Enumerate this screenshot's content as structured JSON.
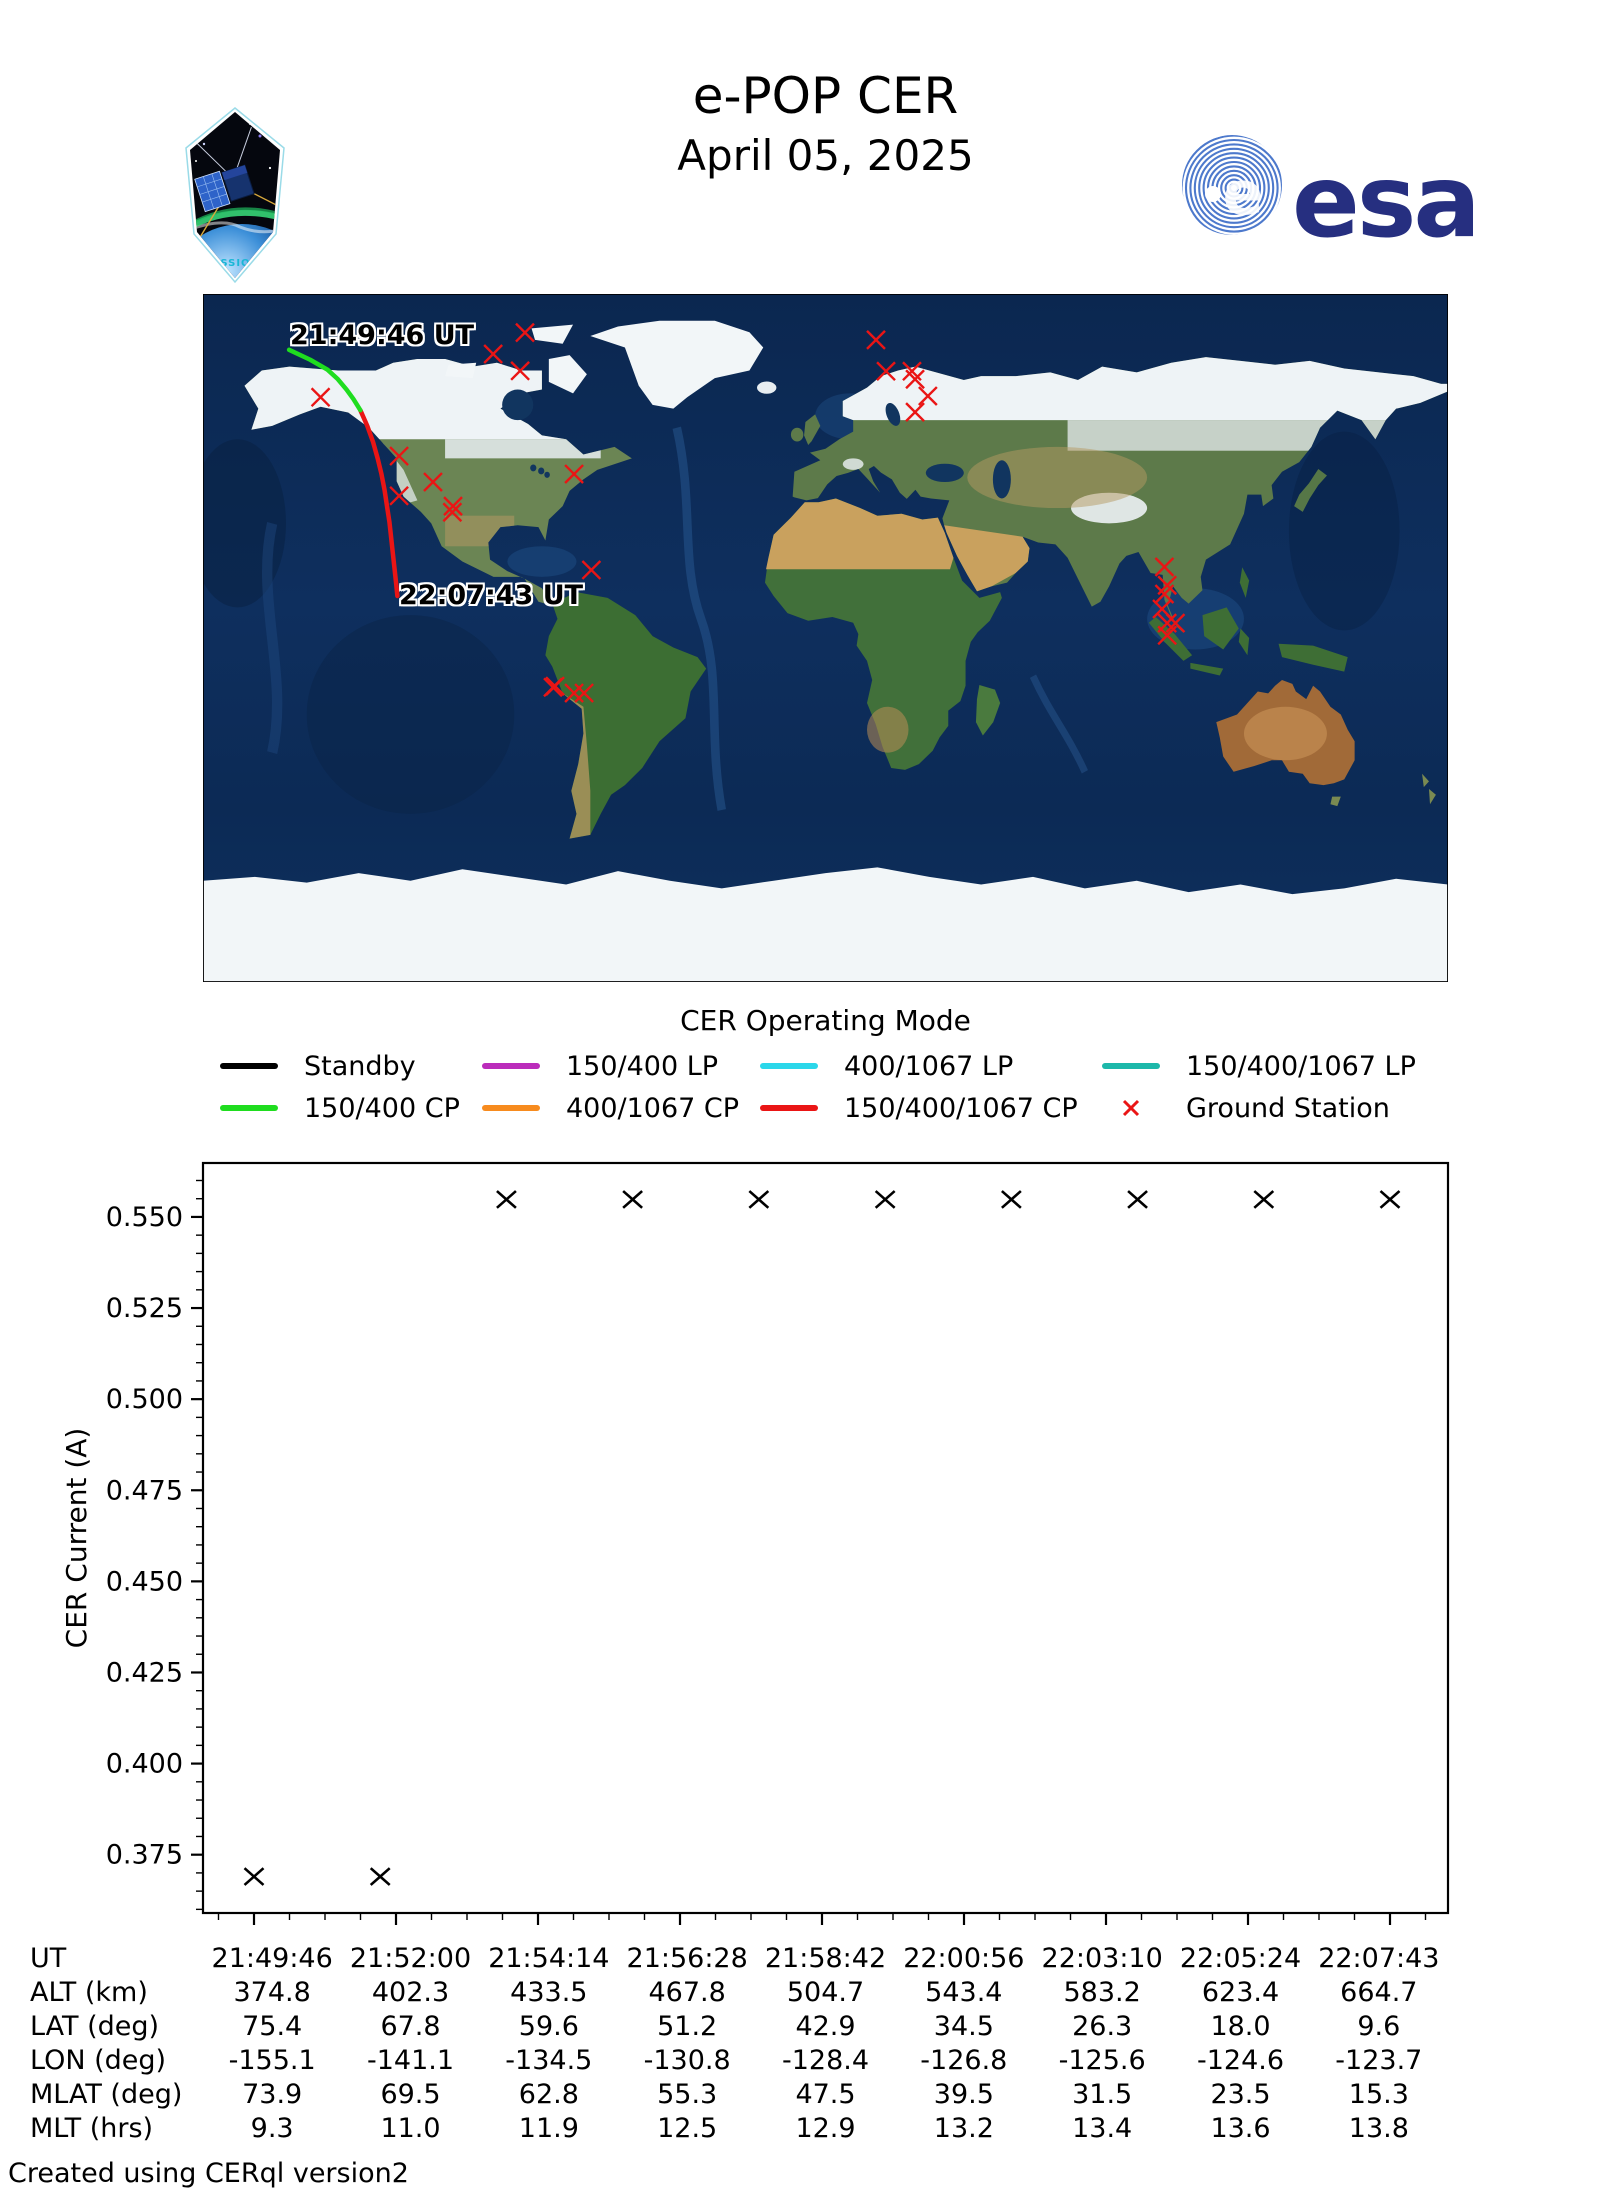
{
  "header": {
    "title": "e-POP CER",
    "date": "April 05, 2025",
    "esa_wordmark": "esa",
    "patch_text": "CASSIOPE"
  },
  "map": {
    "start_label": "21:49:46 UT",
    "end_label": "22:07:43 UT",
    "track_green": [
      [
        -155.1,
        75.4
      ],
      [
        -149.0,
        72.8
      ],
      [
        -144.0,
        70.2
      ],
      [
        -141.1,
        67.8
      ],
      [
        -138.5,
        65.0
      ],
      [
        -136.5,
        62.5
      ],
      [
        -134.5,
        59.6
      ]
    ],
    "track_red": [
      [
        -134.5,
        59.6
      ],
      [
        -132.5,
        55.5
      ],
      [
        -130.8,
        51.2
      ],
      [
        -129.5,
        47.0
      ],
      [
        -128.4,
        42.9
      ],
      [
        -127.5,
        38.7
      ],
      [
        -126.8,
        34.5
      ],
      [
        -126.1,
        30.4
      ],
      [
        -125.6,
        26.3
      ],
      [
        -125.1,
        22.1
      ],
      [
        -124.6,
        18.0
      ],
      [
        -124.1,
        13.8
      ],
      [
        -123.8,
        11.0
      ]
    ],
    "ground_stations": [
      [
        -86.9,
        79.9
      ],
      [
        -96.1,
        74.3
      ],
      [
        -88.3,
        69.9
      ],
      [
        -146.0,
        63.0
      ],
      [
        -123.3,
        47.6
      ],
      [
        -113.5,
        40.8
      ],
      [
        -123.3,
        37.2
      ],
      [
        -107.7,
        34.5
      ],
      [
        -107.9,
        32.9
      ],
      [
        -72.7,
        42.9
      ],
      [
        -67.7,
        17.8
      ],
      [
        -78.2,
        -12.6
      ],
      [
        -78.8,
        -12.9
      ],
      [
        -72.7,
        -14.4
      ],
      [
        -69.8,
        -14.4
      ],
      [
        14.6,
        78.0
      ],
      [
        17.5,
        69.8
      ],
      [
        25.0,
        69.8
      ],
      [
        25.9,
        67.7
      ],
      [
        29.6,
        63.3
      ],
      [
        25.9,
        59.1
      ],
      [
        98.0,
        18.6
      ],
      [
        98.8,
        13.8
      ],
      [
        98.0,
        11.5
      ],
      [
        97.3,
        7.6
      ],
      [
        98.8,
        3.9
      ],
      [
        101.2,
        3.9
      ],
      [
        98.8,
        0.7
      ]
    ],
    "colors": {
      "green_track": "#1fdd1f",
      "red_track": "#ea1515",
      "station": "#ea1515"
    }
  },
  "legend": {
    "title": "CER Operating Mode",
    "items": [
      {
        "label": "Standby",
        "color": "#000000",
        "type": "line"
      },
      {
        "label": "150/400 LP",
        "color": "#bb2cbb",
        "type": "line"
      },
      {
        "label": "400/1067 LP",
        "color": "#2bd7ea",
        "type": "line"
      },
      {
        "label": "150/400/1067 LP",
        "color": "#1db8aa",
        "type": "line"
      },
      {
        "label": "150/400 CP",
        "color": "#1fdd1f",
        "type": "line"
      },
      {
        "label": "400/1067 CP",
        "color": "#f78b1e",
        "type": "line"
      },
      {
        "label": "150/400/1067 CP",
        "color": "#ea1515",
        "type": "line"
      },
      {
        "label": "Ground Station",
        "color": "#ea1515",
        "type": "marker"
      }
    ]
  },
  "chart_data": {
    "type": "scatter",
    "title": "",
    "xlabel": "",
    "ylabel": "CER Current (A)",
    "marker": "x",
    "marker_color": "#000000",
    "ylim": [
      0.359,
      0.5648
    ],
    "yticks": [
      0.375,
      0.4,
      0.425,
      0.45,
      0.475,
      0.5,
      0.525,
      0.55
    ],
    "y_minor_step": 0.005,
    "x_tick_labels": [
      "21:49:46",
      "21:52:00",
      "21:54:14",
      "21:56:28",
      "21:58:42",
      "22:00:56",
      "22:03:10",
      "22:05:24",
      "22:07:43"
    ],
    "x_minor_per_interval": 3,
    "grid": false,
    "points": [
      [
        0.0,
        0.369
      ],
      [
        0.1111,
        0.369
      ],
      [
        0.2222,
        0.5548
      ],
      [
        0.3333,
        0.5548
      ],
      [
        0.4444,
        0.5548
      ],
      [
        0.5556,
        0.5548
      ],
      [
        0.6667,
        0.5548
      ],
      [
        0.7778,
        0.5548
      ],
      [
        0.8889,
        0.5548
      ],
      [
        1.0,
        0.5548
      ]
    ]
  },
  "table": {
    "row_labels": [
      "UT",
      "ALT (km)",
      "LAT (deg)",
      "LON (deg)",
      "MLAT (deg)",
      "MLT (hrs)"
    ],
    "rows": [
      [
        "21:49:46",
        "21:52:00",
        "21:54:14",
        "21:56:28",
        "21:58:42",
        "22:00:56",
        "22:03:10",
        "22:05:24",
        "22:07:43"
      ],
      [
        "374.8",
        "402.3",
        "433.5",
        "467.8",
        "504.7",
        "543.4",
        "583.2",
        "623.4",
        "664.7"
      ],
      [
        "75.4",
        "67.8",
        "59.6",
        "51.2",
        "42.9",
        "34.5",
        "26.3",
        "18.0",
        "9.6"
      ],
      [
        "-155.1",
        "-141.1",
        "-134.5",
        "-130.8",
        "-128.4",
        "-126.8",
        "-125.6",
        "-124.6",
        "-123.7"
      ],
      [
        "73.9",
        "69.5",
        "62.8",
        "55.3",
        "47.5",
        "39.5",
        "31.5",
        "23.5",
        "15.3"
      ],
      [
        "9.3",
        "11.0",
        "11.9",
        "12.5",
        "12.9",
        "13.2",
        "13.4",
        "13.6",
        "13.8"
      ]
    ]
  },
  "footer": {
    "credit": "Created using CERql version2"
  }
}
